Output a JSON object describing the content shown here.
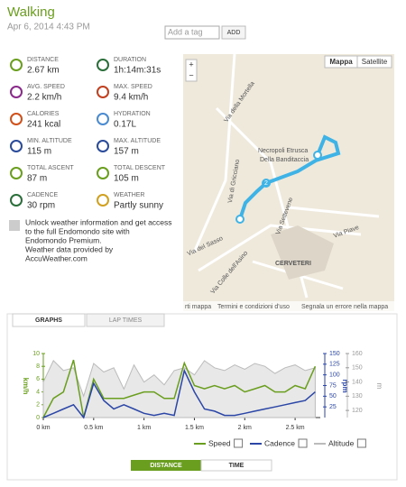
{
  "header": {
    "title": "Walking",
    "date": "Apr 6, 2014 4:43 PM",
    "tag_placeholder": "Add a tag",
    "add_button": "ADD"
  },
  "stats": [
    {
      "label": "DISTANCE",
      "value": "2.67 km"
    },
    {
      "label": "DURATION",
      "value": "1h:14m:31s"
    },
    {
      "label": "AVG. SPEED",
      "value": "2.2 km/h"
    },
    {
      "label": "MAX. SPEED",
      "value": "9.4 km/h"
    },
    {
      "label": "CALORIES",
      "value": "241 kcal"
    },
    {
      "label": "HYDRATION",
      "value": "0.17L"
    },
    {
      "label": "MIN. ALTITUDE",
      "value": "115 m"
    },
    {
      "label": "MAX. ALTITUDE",
      "value": "157 m"
    },
    {
      "label": "TOTAL ASCENT",
      "value": "87 m"
    },
    {
      "label": "TOTAL DESCENT",
      "value": "105 m"
    },
    {
      "label": "CADENCE",
      "value": "30 rpm"
    },
    {
      "label": "WEATHER",
      "value": "Partly sunny"
    }
  ],
  "weather_note": [
    "Unlock weather information and get access",
    "to the full Endomondo site with",
    "Endomondo Premium.",
    "Weather data provided by",
    "AccuWeather.com"
  ],
  "map": {
    "buttons": [
      "Mappa",
      "Satellite"
    ],
    "zoom": [
      "+",
      "−"
    ],
    "labels": [
      "Necropoli Etrusca",
      "Della Banditaccia",
      "CERVETERI",
      "Via del Sasso",
      "Via della Mortella",
      "Via di Gricciano",
      "Via Piave",
      "Via Colle dell'Asino",
      "Via Settevene"
    ],
    "marker": "2",
    "footer": [
      "rti mappa",
      "Termini e condizioni d'uso",
      "Segnala un errore nella mappa"
    ]
  },
  "tabs": [
    "GRAPHS",
    "LAP TIMES"
  ],
  "chart_data": {
    "type": "line",
    "x": [
      0,
      0.1,
      0.2,
      0.3,
      0.4,
      0.5,
      0.6,
      0.7,
      0.8,
      0.9,
      1.0,
      1.1,
      1.2,
      1.3,
      1.4,
      1.5,
      1.6,
      1.7,
      1.8,
      1.9,
      2.0,
      2.1,
      2.2,
      2.3,
      2.4,
      2.5,
      2.6,
      2.7
    ],
    "xlim": [
      0,
      2.75
    ],
    "xticks": [
      {
        "value": 0,
        "label": "0 km"
      },
      {
        "value": 0.5,
        "label": "0.5 km"
      },
      {
        "value": 1,
        "label": "1 km"
      },
      {
        "value": 1.5,
        "label": "1.5 km"
      },
      {
        "value": 2,
        "label": "2 km"
      },
      {
        "value": 2.5,
        "label": "2.5 km"
      }
    ],
    "ylabel": "km/h",
    "ylim": [
      0,
      10
    ],
    "yticks": [
      0,
      2,
      4,
      6,
      8,
      10
    ],
    "y2label": "rpm",
    "y2lim": [
      0,
      150
    ],
    "y2ticks": [
      25,
      50,
      75,
      100,
      125,
      150
    ],
    "y3label": "m",
    "y3lim": [
      115,
      160
    ],
    "y3ticks": [
      120,
      130,
      140,
      150,
      160
    ],
    "series": [
      {
        "name": "Altitude",
        "color": "#bbbbbb",
        "axis": "y3",
        "values": [
          140,
          155,
          148,
          150,
          130,
          153,
          147,
          150,
          135,
          152,
          140,
          145,
          138,
          148,
          150,
          145,
          155,
          150,
          148,
          152,
          149,
          153,
          151,
          146,
          150,
          152,
          148,
          150
        ]
      },
      {
        "name": "Speed",
        "color": "#6a9e1e",
        "axis": "y",
        "values": [
          0,
          3,
          4,
          9,
          0,
          6,
          3,
          3,
          3,
          3.5,
          4,
          4,
          3,
          3,
          8.5,
          5,
          4.5,
          5,
          4.5,
          5,
          4,
          4.5,
          5,
          4,
          4,
          5,
          4.5,
          8
        ]
      },
      {
        "name": "Cadence",
        "color": "#2b46a6",
        "axis": "y2",
        "values": [
          0,
          10,
          20,
          30,
          0,
          80,
          40,
          20,
          30,
          20,
          10,
          5,
          10,
          5,
          110,
          60,
          20,
          15,
          5,
          5,
          10,
          15,
          20,
          25,
          30,
          35,
          40,
          60
        ]
      }
    ]
  },
  "legend_order": [
    1,
    2,
    0
  ],
  "buttons": [
    "DISTANCE",
    "TIME"
  ]
}
